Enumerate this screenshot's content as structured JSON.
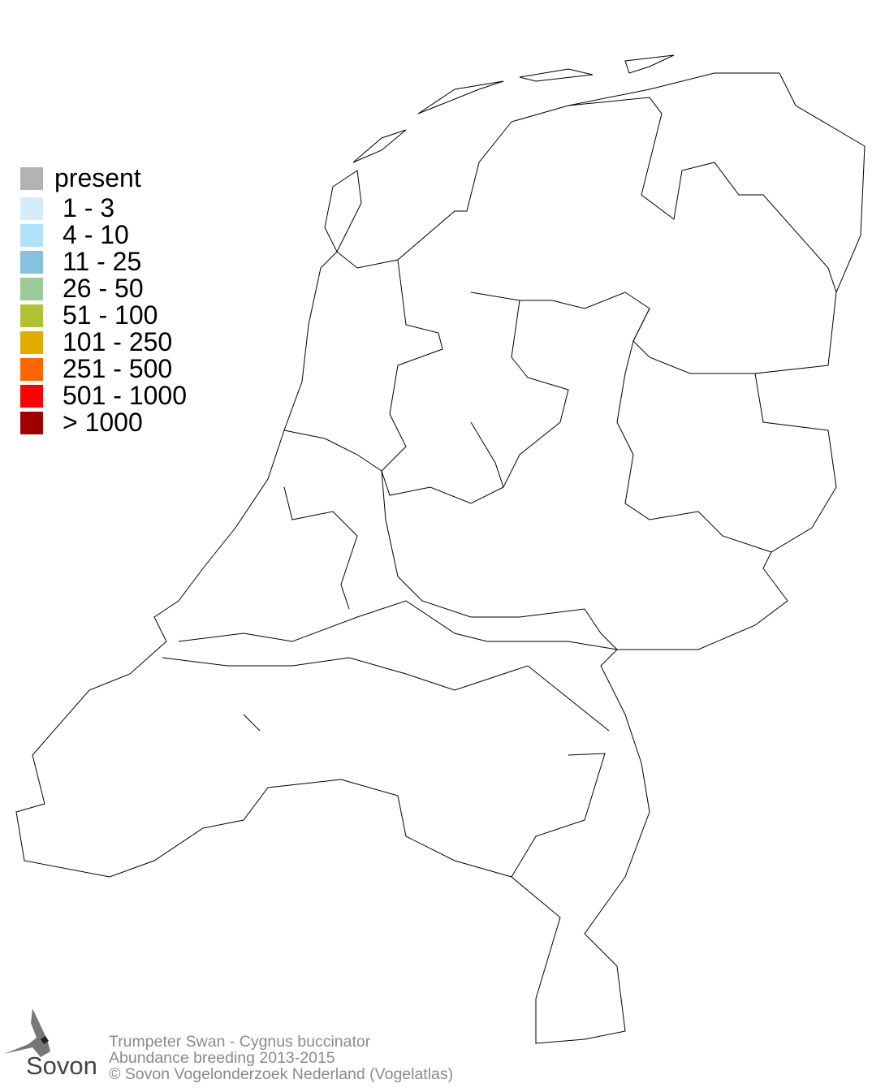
{
  "legend": {
    "items": [
      {
        "label": "present",
        "color": "#b3b3b3"
      },
      {
        "label": "1 - 3",
        "color": "#d4ecfa"
      },
      {
        "label": "4 - 10",
        "color": "#b0e2f9"
      },
      {
        "label": "11 - 25",
        "color": "#86c1df"
      },
      {
        "label": "26 - 50",
        "color": "#9aca95"
      },
      {
        "label": "51 - 100",
        "color": "#b0c132"
      },
      {
        "label": "101 - 250",
        "color": "#e0ac00"
      },
      {
        "label": "251 - 500",
        "color": "#ff6600"
      },
      {
        "label": "501 - 1000",
        "color": "#ff0000"
      },
      {
        "label": "> 1000",
        "color": "#a00000"
      }
    ]
  },
  "footer": {
    "species": "Trumpeter Swan - Cygnus buccinator",
    "subtitle": "Abundance breeding 2013-2015",
    "copyright": "© Sovon Vogelonderzoek Nederland (Vogelatlas)"
  },
  "logo": {
    "text": "Sovon",
    "icon": "swallow-icon"
  }
}
